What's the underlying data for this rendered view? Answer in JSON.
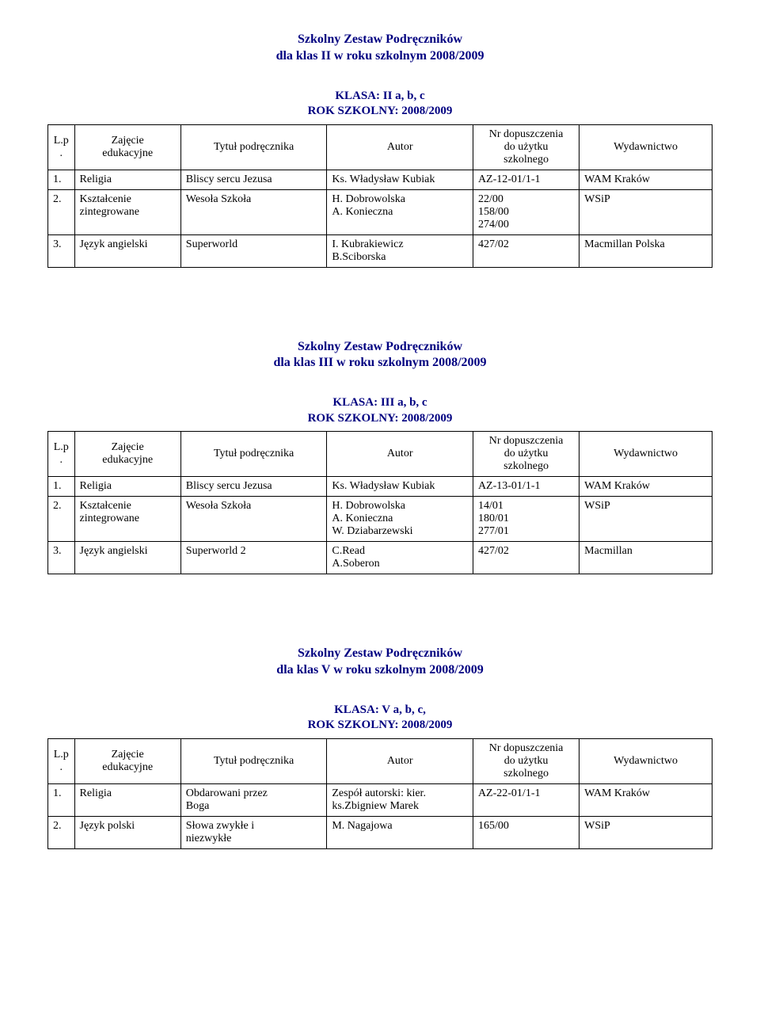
{
  "sections": [
    {
      "title_l1": "Szkolny Zestaw Podręczników",
      "title_l2": "dla klas II w roku szkolnym 2008/2009",
      "class_l1": "KLASA: II a, b, c",
      "class_l2": "ROK SZKOLNY: 2008/2009",
      "headers": {
        "lp": "L.p.",
        "zaj": "Zajęcie\nedukacyjne",
        "tyt": "Tytuł podręcznika",
        "aut": "Autor",
        "nr": "Nr dopuszczenia\ndo użytku\nszkolnego",
        "wyd": "Wydawnictwo"
      },
      "rows": [
        {
          "lp": "1.",
          "zaj": "Religia",
          "tyt": "Bliscy sercu Jezusa",
          "aut": "Ks. Władysław Kubiak",
          "nr": "AZ-12-01/1-1",
          "wyd": "WAM Kraków"
        },
        {
          "lp": "2.",
          "zaj": "Kształcenie\nzintegrowane",
          "tyt": "Wesoła Szkoła",
          "aut": "H. Dobrowolska\nA. Konieczna",
          "nr": "22/00\n158/00\n274/00",
          "wyd": "WSiP"
        },
        {
          "lp": "3.",
          "zaj": "Język angielski",
          "tyt": "Superworld",
          "aut": "I. Kubrakiewicz\nB.Sciborska",
          "nr": "427/02",
          "wyd": "Macmillan Polska"
        }
      ]
    },
    {
      "title_l1": "Szkolny Zestaw Podręczników",
      "title_l2": "dla klas III w roku szkolnym 2008/2009",
      "class_l1": "KLASA: III a, b, c",
      "class_l2": "ROK SZKOLNY: 2008/2009",
      "headers": {
        "lp": "L.p.",
        "zaj": "Zajęcie\nedukacyjne",
        "tyt": "Tytuł podręcznika",
        "aut": "Autor",
        "nr": "Nr dopuszczenia\ndo użytku\nszkolnego",
        "wyd": "Wydawnictwo"
      },
      "rows": [
        {
          "lp": "1.",
          "zaj": "Religia",
          "tyt": "Bliscy sercu Jezusa",
          "aut": "Ks. Władysław Kubiak",
          "nr": "AZ-13-01/1-1",
          "wyd": "WAM Kraków"
        },
        {
          "lp": "2.",
          "zaj": "Kształcenie\nzintegrowane",
          "tyt": "Wesoła Szkoła",
          "aut": "H. Dobrowolska\nA. Konieczna\nW. Dziabarzewski",
          "nr": "14/01\n180/01\n277/01",
          "wyd": "WSiP"
        },
        {
          "lp": "3.",
          "zaj": "Język angielski",
          "tyt": "Superworld 2",
          "aut": "C.Read\nA.Soberon",
          "nr": "427/02",
          "wyd": "Macmillan"
        }
      ]
    },
    {
      "title_l1": "Szkolny Zestaw Podręczników",
      "title_l2": "dla klas V w roku szkolnym 2008/2009",
      "class_l1": "KLASA: V a, b, c,",
      "class_l2": "ROK SZKOLNY: 2008/2009",
      "headers": {
        "lp": "L.p.",
        "zaj": "Zajęcie\nedukacyjne",
        "tyt": "Tytuł podręcznika",
        "aut": "Autor",
        "nr": "Nr dopuszczenia\ndo użytku\nszkolnego",
        "wyd": "Wydawnictwo"
      },
      "rows": [
        {
          "lp": "1.",
          "zaj": "Religia",
          "tyt": "Obdarowani przez\nBoga",
          "aut": "Zespół autorski: kier.\nks.Zbigniew Marek",
          "nr": "AZ-22-01/1-1",
          "wyd": "WAM Kraków"
        },
        {
          "lp": "2.",
          "zaj": "Język polski",
          "tyt": "Słowa zwykłe i\nniezwykłe",
          "aut": "M. Nagajowa",
          "nr": "165/00",
          "wyd": "WSiP"
        }
      ]
    }
  ]
}
